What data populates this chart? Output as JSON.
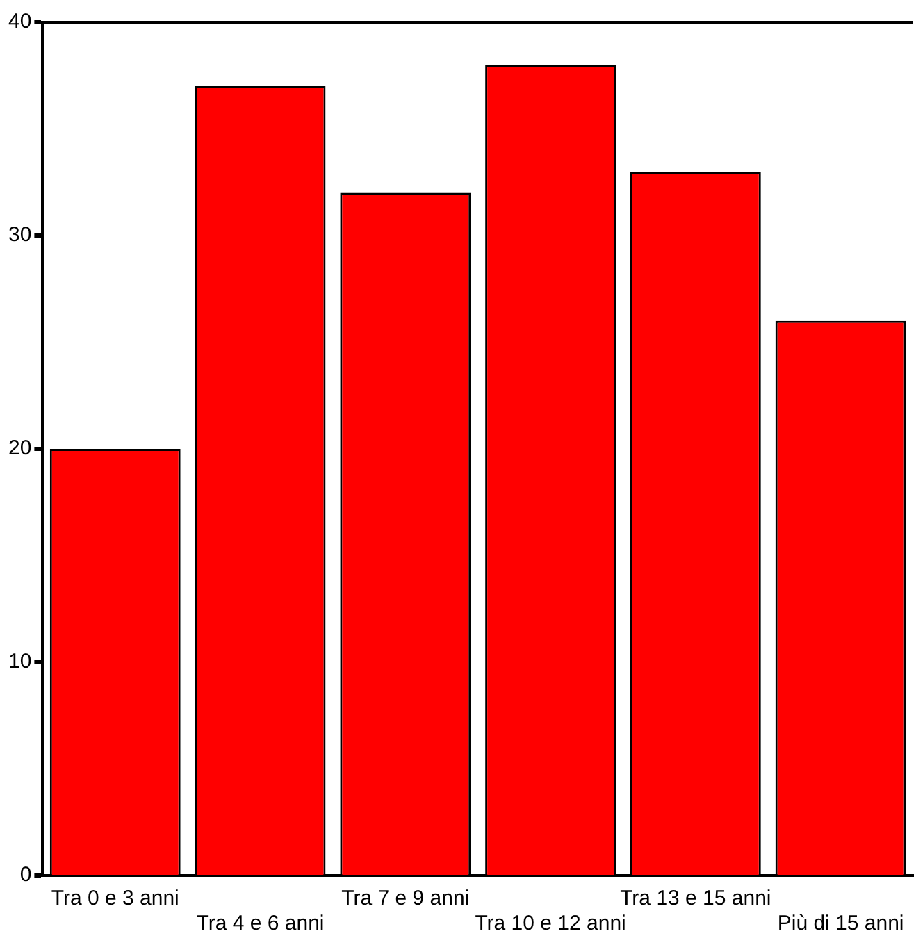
{
  "chart_data": {
    "type": "bar",
    "categories": [
      "Tra 0 e 3 anni",
      "Tra 4 e 6 anni",
      "Tra 7 e 9 anni",
      "Tra 10 e 12 anni",
      "Tra 13 e 15 anni",
      "Più di 15 anni"
    ],
    "values": [
      20,
      37,
      32,
      38,
      33,
      26
    ],
    "color": "#ff0000",
    "ylim": [
      0,
      40
    ],
    "yticks": [
      0,
      10,
      20,
      30,
      40
    ],
    "grid": false
  }
}
